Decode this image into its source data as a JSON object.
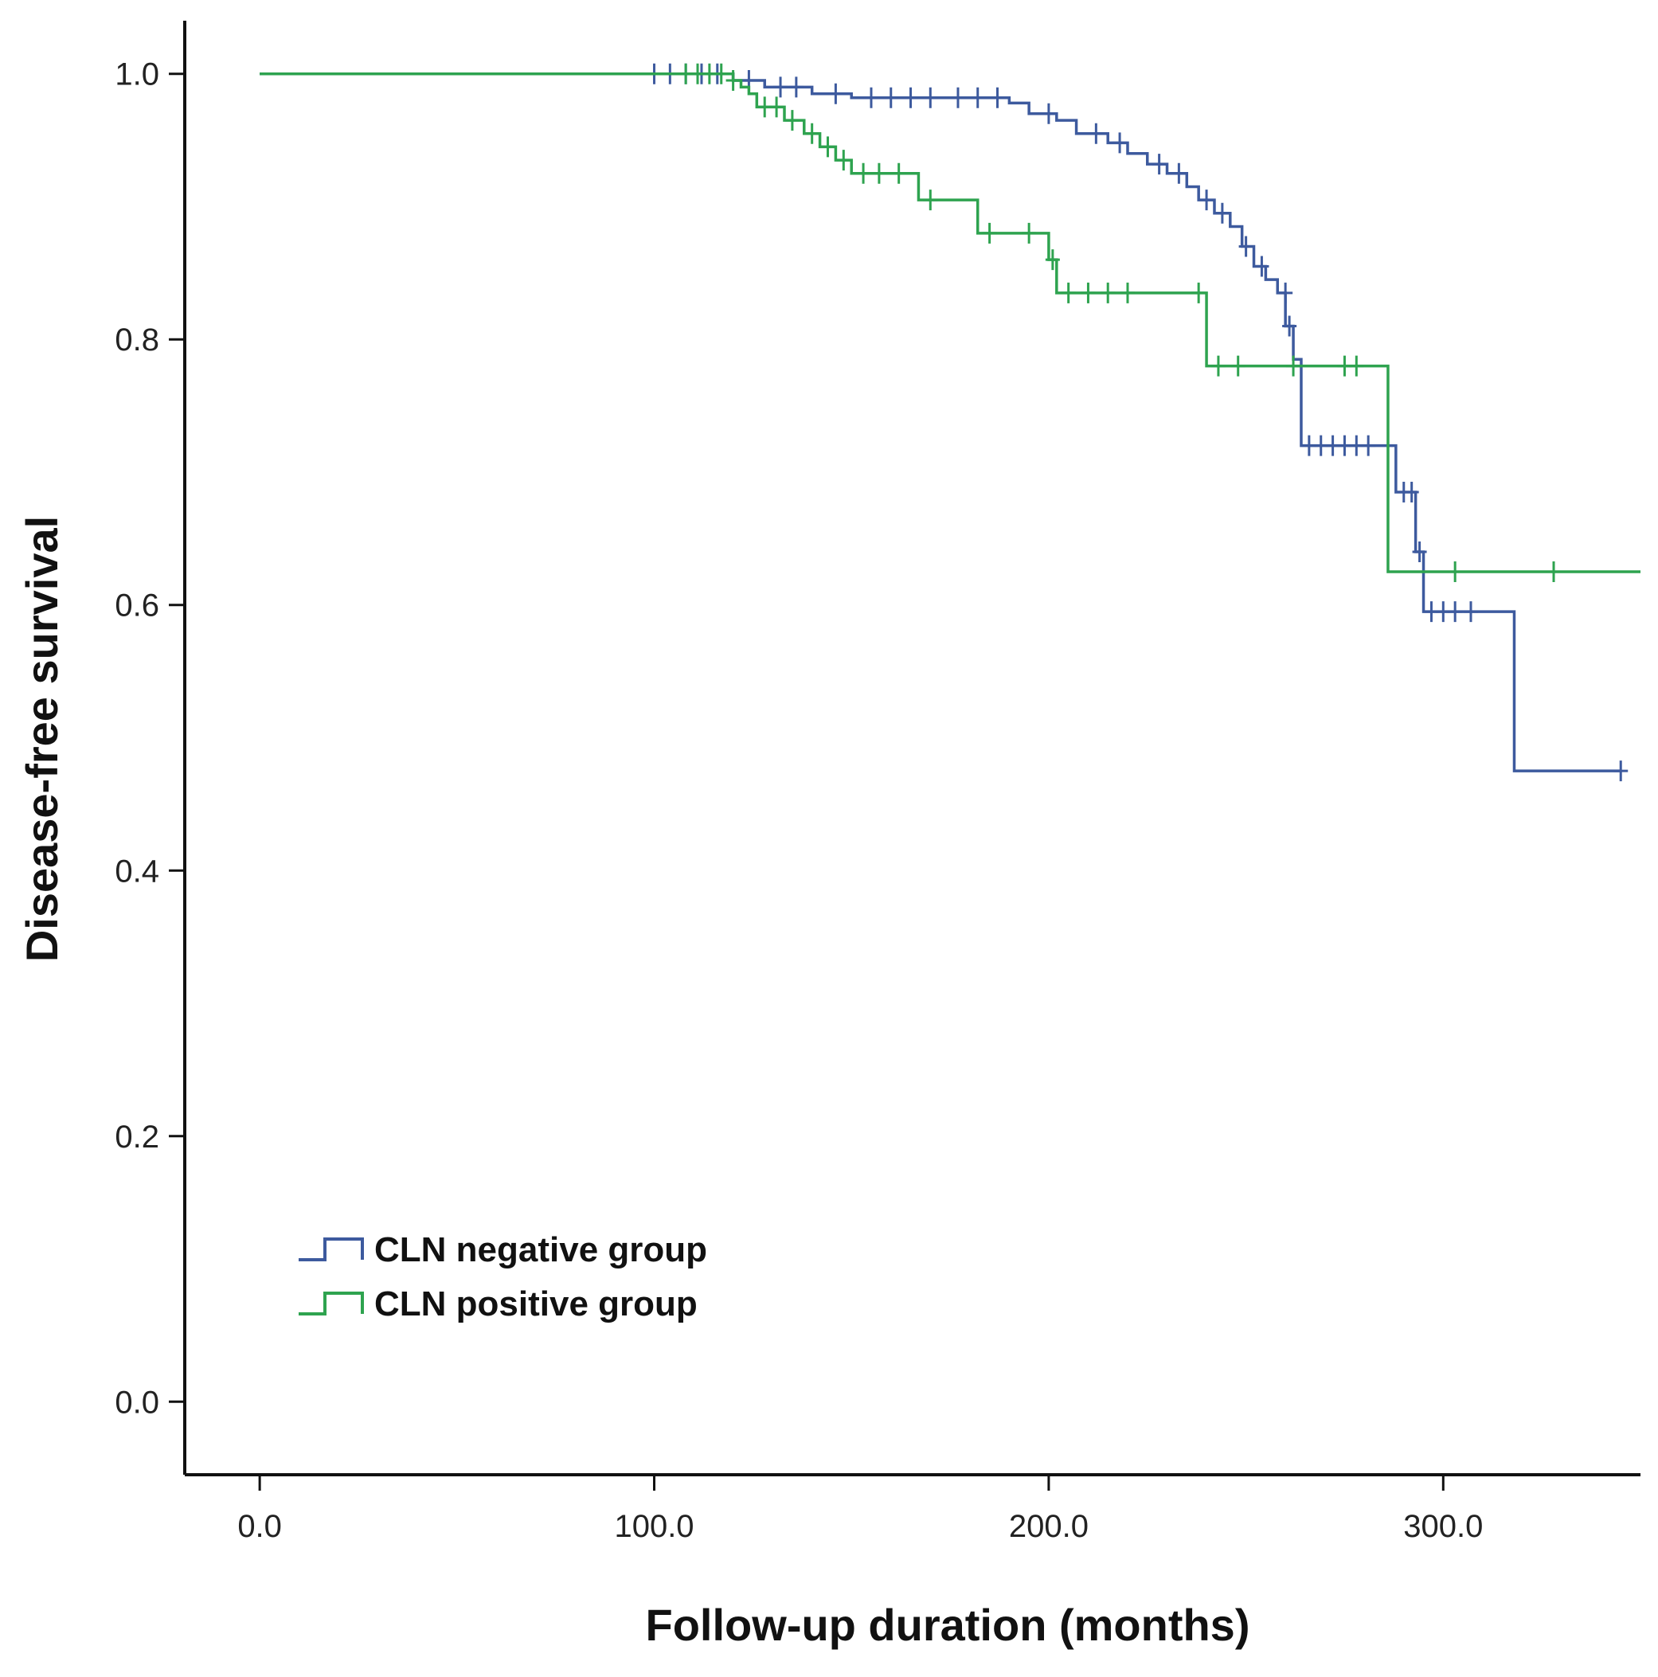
{
  "chart_data": {
    "type": "line",
    "title": "",
    "xlabel": "Follow-up duration (months)",
    "ylabel": "Disease-free survival",
    "xlim": [
      -19,
      350
    ],
    "ylim": [
      -0.055,
      1.04
    ],
    "x_ticks": [
      "0.0",
      "100.0",
      "200.0",
      "300.0"
    ],
    "y_ticks": [
      "0.0",
      "0.2",
      "0.4",
      "0.6",
      "0.8",
      "1.0"
    ],
    "grid": false,
    "legend_position": "bottom-left",
    "series": [
      {
        "name": "CLN negative group",
        "color": "#3d5a9e",
        "steps": [
          [
            0,
            1.0
          ],
          [
            120,
            0.995
          ],
          [
            128,
            0.99
          ],
          [
            140,
            0.985
          ],
          [
            150,
            0.982
          ],
          [
            190,
            0.978
          ],
          [
            195,
            0.97
          ],
          [
            202,
            0.965
          ],
          [
            207,
            0.955
          ],
          [
            215,
            0.948
          ],
          [
            220,
            0.94
          ],
          [
            225,
            0.932
          ],
          [
            230,
            0.925
          ],
          [
            235,
            0.915
          ],
          [
            238,
            0.905
          ],
          [
            242,
            0.895
          ],
          [
            246,
            0.885
          ],
          [
            249,
            0.87
          ],
          [
            252,
            0.855
          ],
          [
            255,
            0.845
          ],
          [
            258,
            0.835
          ],
          [
            260,
            0.81
          ],
          [
            262,
            0.785
          ],
          [
            264,
            0.72
          ],
          [
            288,
            0.685
          ],
          [
            293,
            0.64
          ],
          [
            295,
            0.595
          ],
          [
            318,
            0.475
          ],
          [
            345,
            0.475
          ]
        ],
        "censored": [
          [
            100,
            1.0
          ],
          [
            104,
            1.0
          ],
          [
            108,
            1.0
          ],
          [
            112,
            1.0
          ],
          [
            116,
            1.0
          ],
          [
            124,
            0.995
          ],
          [
            132,
            0.99
          ],
          [
            136,
            0.99
          ],
          [
            146,
            0.985
          ],
          [
            155,
            0.982
          ],
          [
            160,
            0.982
          ],
          [
            165,
            0.982
          ],
          [
            170,
            0.982
          ],
          [
            177,
            0.982
          ],
          [
            182,
            0.982
          ],
          [
            187,
            0.982
          ],
          [
            200,
            0.97
          ],
          [
            212,
            0.955
          ],
          [
            218,
            0.948
          ],
          [
            228,
            0.932
          ],
          [
            233,
            0.925
          ],
          [
            240,
            0.905
          ],
          [
            244,
            0.895
          ],
          [
            250,
            0.87
          ],
          [
            254,
            0.855
          ],
          [
            260,
            0.835
          ],
          [
            261,
            0.81
          ],
          [
            266,
            0.72
          ],
          [
            269,
            0.72
          ],
          [
            272,
            0.72
          ],
          [
            275,
            0.72
          ],
          [
            278,
            0.72
          ],
          [
            281,
            0.72
          ],
          [
            290,
            0.685
          ],
          [
            292,
            0.685
          ],
          [
            294,
            0.64
          ],
          [
            297,
            0.595
          ],
          [
            300,
            0.595
          ],
          [
            303,
            0.595
          ],
          [
            307,
            0.595
          ],
          [
            345,
            0.475
          ]
        ]
      },
      {
        "name": "CLN positive group",
        "color": "#2ea34f",
        "steps": [
          [
            0,
            1.0
          ],
          [
            120,
            0.995
          ],
          [
            122,
            0.99
          ],
          [
            124,
            0.985
          ],
          [
            126,
            0.975
          ],
          [
            133,
            0.965
          ],
          [
            138,
            0.955
          ],
          [
            142,
            0.945
          ],
          [
            146,
            0.935
          ],
          [
            150,
            0.925
          ],
          [
            167,
            0.905
          ],
          [
            182,
            0.88
          ],
          [
            200,
            0.86
          ],
          [
            202,
            0.835
          ],
          [
            240,
            0.78
          ],
          [
            286,
            0.625
          ],
          [
            350,
            0.625
          ]
        ],
        "censored": [
          [
            108,
            1.0
          ],
          [
            111,
            1.0
          ],
          [
            114,
            1.0
          ],
          [
            117,
            1.0
          ],
          [
            120,
            0.995
          ],
          [
            128,
            0.975
          ],
          [
            131,
            0.975
          ],
          [
            135,
            0.965
          ],
          [
            140,
            0.955
          ],
          [
            144,
            0.945
          ],
          [
            148,
            0.935
          ],
          [
            153,
            0.925
          ],
          [
            157,
            0.925
          ],
          [
            162,
            0.925
          ],
          [
            170,
            0.905
          ],
          [
            185,
            0.88
          ],
          [
            195,
            0.88
          ],
          [
            201,
            0.86
          ],
          [
            205,
            0.835
          ],
          [
            210,
            0.835
          ],
          [
            215,
            0.835
          ],
          [
            220,
            0.835
          ],
          [
            238,
            0.835
          ],
          [
            243,
            0.78
          ],
          [
            248,
            0.78
          ],
          [
            262,
            0.78
          ],
          [
            275,
            0.78
          ],
          [
            278,
            0.78
          ],
          [
            303,
            0.625
          ],
          [
            328,
            0.625
          ]
        ]
      }
    ]
  }
}
